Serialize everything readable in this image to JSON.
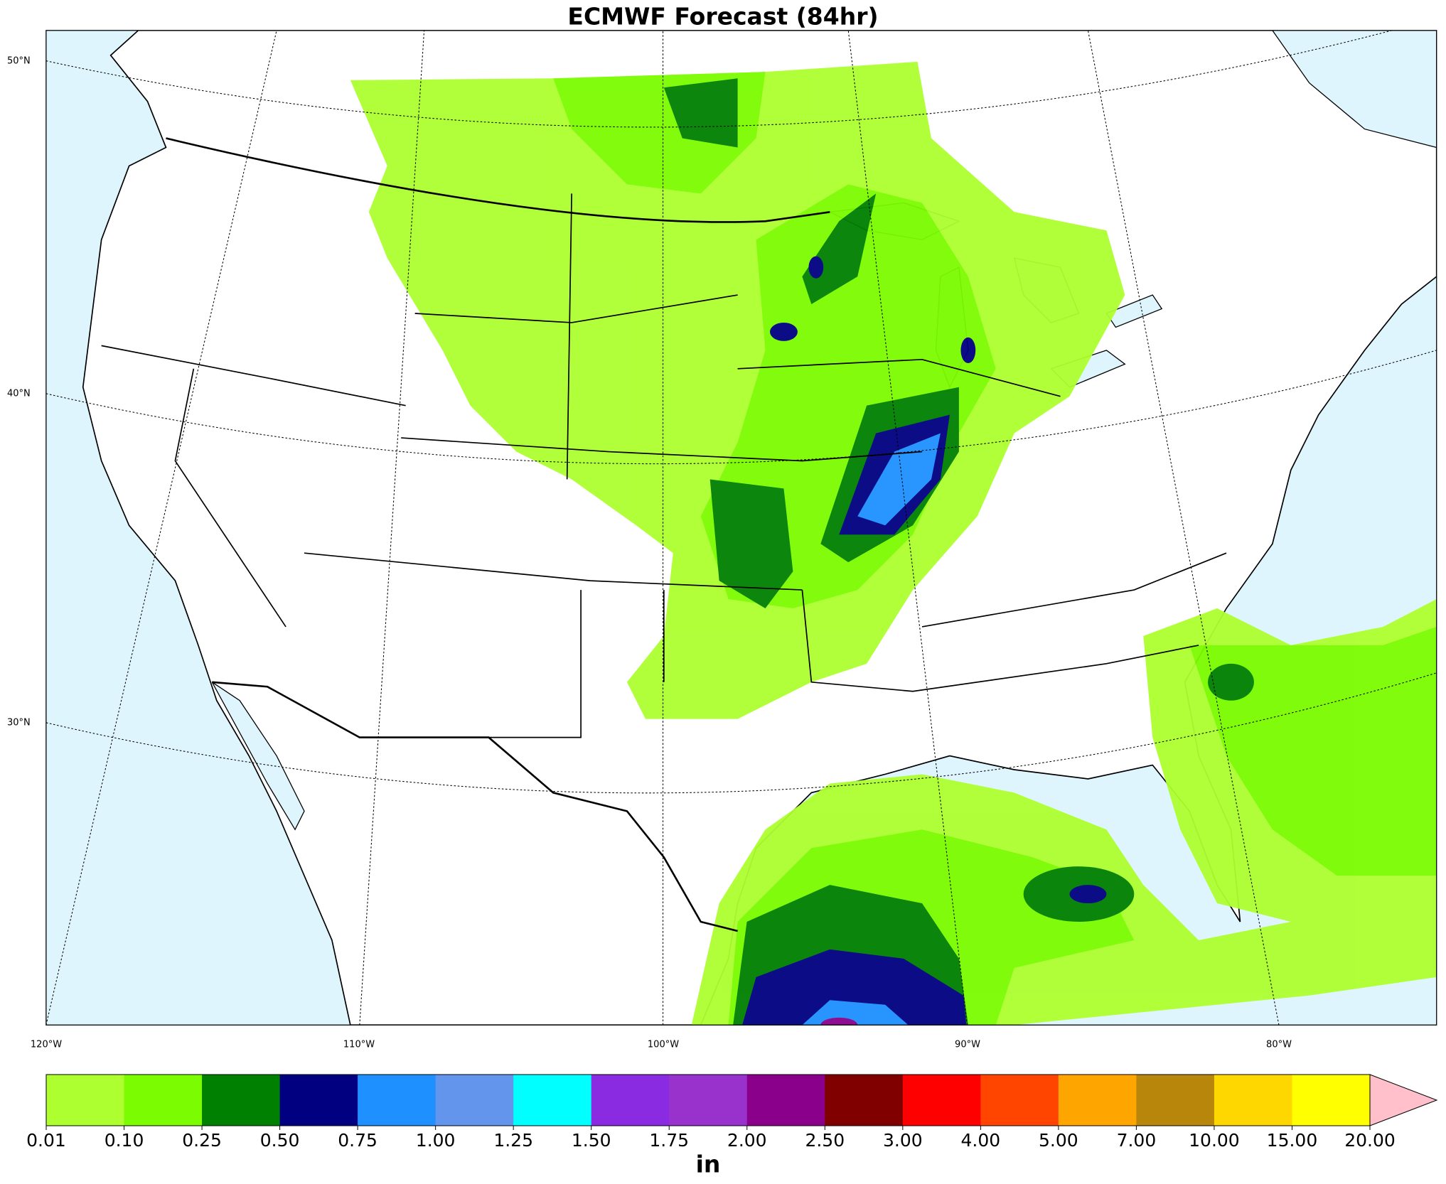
{
  "title": "ECMWF Forecast (84hr)",
  "lat_labels": [
    "50°N",
    "40°N",
    "30°N"
  ],
  "lon_labels": [
    "120°W",
    "110°W",
    "100°W",
    "90°W",
    "80°W"
  ],
  "colorbar": {
    "unit": "in",
    "levels": [
      0.01,
      {
        "value": 0.1,
        "label": "0.10"
      },
      0.25,
      {
        "value": 0.5,
        "label": "0.50"
      },
      0.75,
      {
        "value": 1,
        "label": "1.00"
      },
      1.25,
      {
        "value": 1.5,
        "label": "1.50"
      },
      1.75,
      {
        "value": 2,
        "label": "2.00"
      },
      {
        "value": 2.5,
        "label": "2.50"
      },
      {
        "value": 3,
        "label": "3.00"
      },
      {
        "value": 4,
        "label": "4.00"
      },
      {
        "value": 5,
        "label": "5.00"
      },
      {
        "value": 7,
        "label": "7.00"
      },
      {
        "value": 10,
        "label": "10.00"
      },
      {
        "value": 15,
        "label": "15.00"
      },
      {
        "value": 20,
        "label": "20.00"
      }
    ],
    "colors": [
      "#adff2f",
      "#7cfc00",
      "#008000",
      "#000080",
      "#1e90ff",
      "#6495ed",
      "#00ffff",
      "#8a2be2",
      "#9932cc",
      "#8b008b",
      "#800000",
      "#ff0000",
      "#ff4500",
      "#ffa500",
      "#b8860b",
      "#ffd700",
      "#ffff00"
    ],
    "extend_color": "#ffc0cb"
  }
}
